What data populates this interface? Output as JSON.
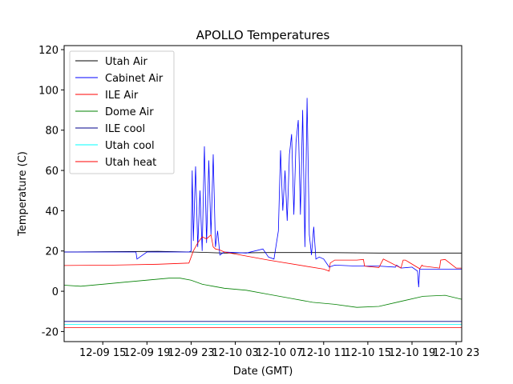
{
  "chart_data": {
    "type": "line",
    "title": "APOLLO Temperatures",
    "xlabel": "Date (GMT)",
    "ylabel": "Temperature (C)",
    "xlim": [
      11.5,
      47.5
    ],
    "ylim": [
      -25,
      122
    ],
    "yticks": [
      -20,
      0,
      20,
      40,
      60,
      80,
      100,
      120
    ],
    "xticks": [
      {
        "t": 15,
        "label": "12-09 15"
      },
      {
        "t": 19,
        "label": "12-09 19"
      },
      {
        "t": 23,
        "label": "12-09 23"
      },
      {
        "t": 27,
        "label": "12-10 03"
      },
      {
        "t": 31,
        "label": "12-10 07"
      },
      {
        "t": 35,
        "label": "12-10 11"
      },
      {
        "t": 39,
        "label": "12-10 15"
      },
      {
        "t": 43,
        "label": "12-10 19"
      },
      {
        "t": 47,
        "label": "12-10 23"
      }
    ],
    "legend_position": "top-left",
    "series": [
      {
        "name": "Utah Air",
        "color": "#000000",
        "t": [
          11.5,
          20,
          23,
          26,
          30,
          35,
          40,
          47.5
        ],
        "v": [
          19.5,
          19.8,
          19.5,
          19.0,
          19.2,
          19.2,
          19.0,
          19.0
        ]
      },
      {
        "name": "Cabinet Air",
        "color": "#0000ff",
        "t": [
          11.5,
          17,
          18,
          18.1,
          19,
          22.8,
          23.0,
          23.1,
          23.2,
          23.4,
          23.6,
          23.8,
          24.0,
          24.2,
          24.4,
          24.6,
          24.8,
          25.0,
          25.2,
          25.4,
          25.6,
          26.0,
          28,
          29.5,
          30.0,
          30.5,
          30.9,
          31.1,
          31.3,
          31.5,
          31.7,
          31.9,
          32.1,
          32.3,
          32.5,
          32.7,
          32.9,
          33.1,
          33.3,
          33.5,
          33.7,
          33.9,
          34.1,
          34.3,
          34.6,
          35.0,
          35.5,
          36.0,
          38,
          40,
          41.5,
          41.6,
          42,
          43,
          43.5,
          43.6,
          43.7,
          44,
          46,
          47.5
        ],
        "v": [
          19.5,
          19.5,
          19.5,
          16,
          19.5,
          19.5,
          20,
          60,
          25,
          62,
          22,
          50,
          20,
          72,
          24,
          65,
          28,
          68,
          22,
          30,
          18,
          19.5,
          19,
          21,
          17,
          16,
          30,
          70,
          40,
          60,
          35,
          68,
          78,
          38,
          74,
          85,
          38,
          90,
          22,
          96,
          28,
          18,
          32,
          16,
          17,
          16,
          12,
          13,
          12.5,
          12.5,
          12,
          13,
          11.5,
          12,
          10,
          2,
          11,
          11,
          11,
          11
        ]
      },
      {
        "name": "ILE Air",
        "color": "#ff0000",
        "t": [
          11.5,
          16,
          20,
          22.8,
          23.2,
          23.6,
          24.0,
          24.4,
          24.8,
          25.0,
          25.2,
          25.6,
          26.0,
          30,
          35,
          35.5,
          35.6,
          36,
          38,
          38.6,
          38.7,
          39,
          40,
          40.4,
          40.6,
          42,
          42.2,
          42.4,
          43.7,
          43.9,
          44.0,
          45.5,
          45.6,
          46.0,
          47.0,
          47.5
        ],
        "v": [
          12.8,
          13.0,
          13.4,
          14,
          20,
          24,
          27,
          26,
          28,
          22,
          21,
          20.5,
          19.5,
          15.5,
          11,
          10,
          14,
          15.5,
          15.5,
          15.8,
          12.5,
          12.3,
          11.8,
          16,
          15.5,
          11.5,
          15.5,
          15.5,
          11.2,
          13,
          12.5,
          11.5,
          15.5,
          15.8,
          11.5,
          11.5
        ]
      },
      {
        "name": "Dome Air",
        "color": "#008000",
        "t": [
          11.5,
          13,
          15,
          17,
          19,
          21,
          22,
          23,
          24,
          25,
          26,
          28,
          30,
          32,
          34,
          36,
          38,
          40,
          42,
          44,
          46,
          47.5
        ],
        "v": [
          3,
          2.5,
          3.5,
          4.5,
          5.5,
          6.5,
          6.5,
          5.5,
          3.5,
          2.5,
          1.5,
          0.5,
          -1.5,
          -3.5,
          -5.5,
          -6.5,
          -8,
          -7.5,
          -5,
          -2.5,
          -2,
          -4
        ]
      },
      {
        "name": "ILE cool",
        "color": "#00008b",
        "t": [
          11.5,
          47.5
        ],
        "v": [
          -15,
          -15
        ]
      },
      {
        "name": "Utah cool",
        "color": "#00ffff",
        "t": [
          11.5,
          47.5
        ],
        "v": [
          -16.5,
          -16.5
        ]
      },
      {
        "name": "Utah heat",
        "color": "#ff0000",
        "t": [
          11.5,
          47.5
        ],
        "v": [
          -18,
          -18
        ]
      }
    ]
  }
}
